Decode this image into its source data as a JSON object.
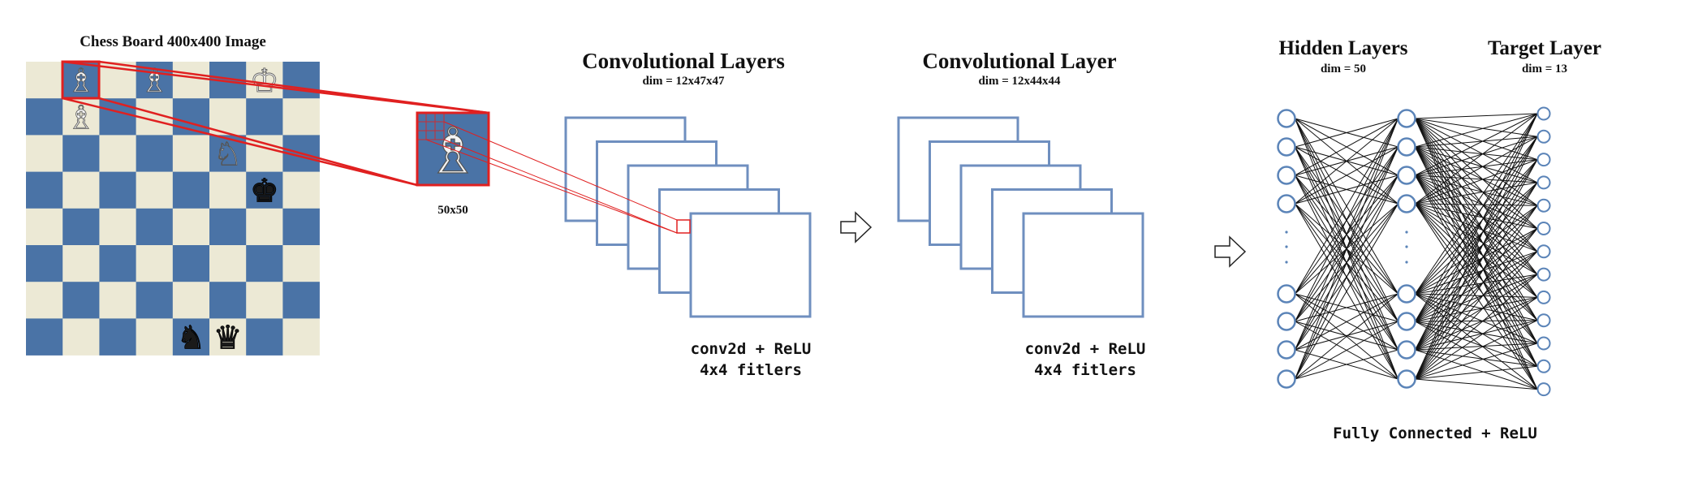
{
  "board": {
    "title": "Chess Board 400x400 Image",
    "light_color": "#ece9d5",
    "dark_color": "#4a73a6",
    "pieces": [
      {
        "piece": "white-bishop",
        "glyph": "♗",
        "row": 0,
        "col": 1
      },
      {
        "piece": "white-bishop",
        "glyph": "♗",
        "row": 0,
        "col": 3
      },
      {
        "piece": "white-king",
        "glyph": "♔",
        "row": 0,
        "col": 6
      },
      {
        "piece": "white-bishop",
        "glyph": "♗",
        "row": 1,
        "col": 1
      },
      {
        "piece": "white-knight",
        "glyph": "♘",
        "row": 2,
        "col": 5
      },
      {
        "piece": "black-king",
        "glyph": "♚",
        "row": 3,
        "col": 6
      },
      {
        "piece": "black-knight",
        "glyph": "♞",
        "row": 7,
        "col": 4
      },
      {
        "piece": "black-queen",
        "glyph": "♛",
        "row": 7,
        "col": 5
      }
    ]
  },
  "crop": {
    "label": "50x50",
    "glyph": "♗",
    "highlight_color": "#e02020"
  },
  "conv1": {
    "title": "Convolutional Layers",
    "dim": "dim = 12x47x47",
    "caption_line1": "conv2d + ReLU",
    "caption_line2": "4x4 fitlers"
  },
  "conv2": {
    "title": "Convolutional Layer",
    "dim": "dim = 12x44x44",
    "caption_line1": "conv2d + ReLU",
    "caption_line2": "4x4 fitlers"
  },
  "hidden": {
    "title": "Hidden Layers",
    "dim": "dim = 50"
  },
  "target": {
    "title": "Target Layer",
    "dim": "dim = 13"
  },
  "fc": {
    "caption": "Fully Connected + ReLU",
    "node_color": "#5b84b8"
  },
  "feature_map_color": "#6f8fbf"
}
